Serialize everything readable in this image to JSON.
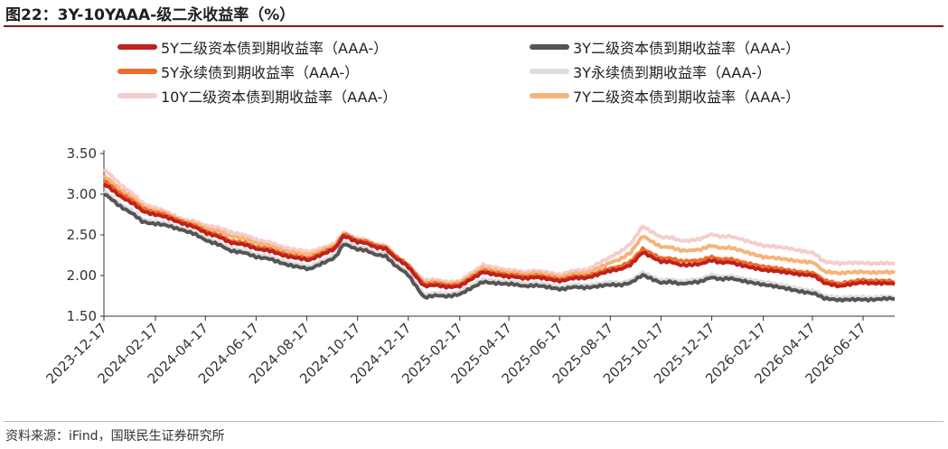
{
  "title": "图22：3Y-10YAAA-级二永收益率（%）",
  "source": "资料来源：iFind，国联民生证券研究所",
  "chart_data": {
    "type": "line",
    "x_start": "2023-12-17",
    "x_end": "2026-07-25",
    "x_ticks": [
      "2023-12-17",
      "2024-02-17",
      "2024-04-17",
      "2024-06-17",
      "2024-08-17",
      "2024-10-17",
      "2024-12-17",
      "2025-02-17",
      "2025-04-17",
      "2025-06-17",
      "2025-08-17",
      "2025-10-17",
      "2025-12-17",
      "2026-02-17",
      "2026-04-17",
      "2026-06-17"
    ],
    "y_ticks": [
      "1.50",
      "2.00",
      "2.50",
      "3.00",
      "3.50"
    ],
    "ylim": [
      1.5,
      3.5
    ],
    "grid": false,
    "legend_position": "top",
    "key_dates": [
      "2023-12-17",
      "2024-02-01",
      "2024-03-20",
      "2024-05-15",
      "2024-07-10",
      "2024-08-20",
      "2024-09-20",
      "2024-09-30",
      "2024-10-17",
      "2024-11-20",
      "2024-12-17",
      "2025-01-05",
      "2025-02-17",
      "2025-03-17",
      "2025-04-17",
      "2025-05-20",
      "2025-06-17",
      "2025-07-20",
      "2025-08-17",
      "2025-09-10",
      "2025-09-25",
      "2025-10-17",
      "2025-11-20",
      "2025-12-17",
      "2026-01-20",
      "2026-02-17",
      "2026-03-20",
      "2026-04-17",
      "2026-05-01",
      "2026-05-20",
      "2026-06-17",
      "2026-07-25"
    ],
    "series": [
      {
        "name": "5Y二级资本债到期收益率（AAA-）",
        "color": "#c0211c",
        "width": 4,
        "values": [
          3.12,
          2.8,
          2.65,
          2.42,
          2.28,
          2.18,
          2.34,
          2.48,
          2.42,
          2.32,
          2.1,
          1.88,
          1.86,
          2.05,
          1.98,
          1.97,
          1.94,
          1.98,
          2.05,
          2.12,
          2.28,
          2.18,
          2.12,
          2.18,
          2.14,
          2.06,
          2.04,
          2.0,
          1.92,
          1.86,
          1.92,
          1.89
        ]
      },
      {
        "name": "3Y二级资本债到期收益率（AAA-）",
        "color": "#555555",
        "width": 4,
        "values": [
          3.0,
          2.67,
          2.57,
          2.32,
          2.18,
          2.07,
          2.23,
          2.38,
          2.33,
          2.23,
          2.0,
          1.74,
          1.76,
          1.93,
          1.89,
          1.87,
          1.84,
          1.86,
          1.88,
          1.9,
          2.0,
          1.92,
          1.9,
          1.97,
          1.95,
          1.88,
          1.84,
          1.78,
          1.73,
          1.69,
          1.71,
          1.71
        ]
      },
      {
        "name": "5Y永续债到期收益率（AAA-）",
        "color": "#ec6d2a",
        "width": 4,
        "values": [
          3.16,
          2.83,
          2.67,
          2.44,
          2.3,
          2.2,
          2.36,
          2.5,
          2.44,
          2.34,
          2.12,
          1.9,
          1.88,
          2.07,
          2.0,
          1.99,
          1.96,
          2.0,
          2.08,
          2.16,
          2.32,
          2.22,
          2.17,
          2.22,
          2.18,
          2.1,
          2.07,
          2.03,
          1.95,
          1.89,
          1.95,
          1.92
        ]
      },
      {
        "name": "3Y永续债到期收益率（AAA-）",
        "color": "#dddddd",
        "width": 4,
        "values": [
          3.03,
          2.7,
          2.59,
          2.35,
          2.21,
          2.1,
          2.26,
          2.41,
          2.36,
          2.26,
          2.03,
          1.77,
          1.79,
          1.96,
          1.92,
          1.9,
          1.87,
          1.89,
          1.91,
          1.93,
          2.03,
          1.95,
          1.93,
          2.0,
          1.98,
          1.91,
          1.87,
          1.81,
          1.76,
          1.72,
          1.74,
          1.73
        ]
      },
      {
        "name": "10Y二级资本债到期收益率（AAA-）",
        "color": "#f6cdcd",
        "width": 4,
        "values": [
          3.3,
          2.9,
          2.7,
          2.55,
          2.38,
          2.28,
          2.4,
          2.52,
          2.46,
          2.36,
          2.12,
          1.95,
          1.92,
          2.14,
          2.06,
          2.05,
          2.02,
          2.08,
          2.22,
          2.38,
          2.6,
          2.48,
          2.42,
          2.5,
          2.46,
          2.36,
          2.34,
          2.28,
          2.18,
          2.14,
          2.16,
          2.14
        ]
      },
      {
        "name": "7Y二级资本债到期收益率（AAA-）",
        "color": "#f6b47a",
        "width": 4,
        "values": [
          3.22,
          2.86,
          2.68,
          2.5,
          2.34,
          2.24,
          2.38,
          2.5,
          2.44,
          2.34,
          2.1,
          1.92,
          1.9,
          2.1,
          2.03,
          2.02,
          1.99,
          2.04,
          2.15,
          2.27,
          2.48,
          2.36,
          2.3,
          2.36,
          2.32,
          2.22,
          2.2,
          2.16,
          2.06,
          2.02,
          2.05,
          2.03
        ]
      }
    ]
  }
}
